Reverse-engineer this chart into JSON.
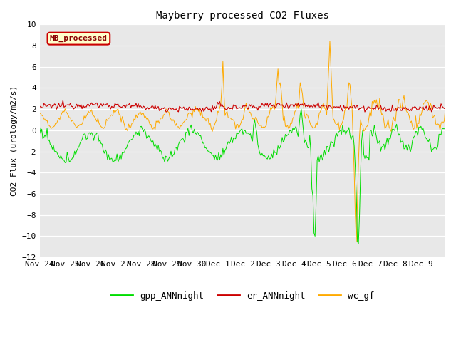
{
  "title": "Mayberry processed CO2 Fluxes",
  "ylabel": "CO2 Flux (urology/m2/s)",
  "ylim": [
    -12,
    10
  ],
  "yticks": [
    -12,
    -10,
    -8,
    -6,
    -4,
    -2,
    0,
    2,
    4,
    6,
    8,
    10
  ],
  "fig_bg_color": "#ffffff",
  "plot_bg_color": "#e8e8e8",
  "line_colors": {
    "gpp": "#00dd00",
    "er": "#cc0000",
    "wc": "#ffaa00"
  },
  "legend_label": "MB_processed",
  "legend_label_color": "#8b0000",
  "legend_box_bg": "#ffffcc",
  "legend_box_edge": "#cc0000",
  "n_points": 384,
  "series_names": [
    "gpp_ANNnight",
    "er_ANNnight",
    "wc_gf"
  ],
  "x_labels": [
    "Nov 24",
    "Nov 25",
    "Nov 26",
    "Nov 27",
    "Nov 28",
    "Nov 29",
    "Nov 30",
    "Dec 1",
    "Dec 2",
    "Dec 3",
    "Dec 4",
    "Dec 5",
    "Dec 6",
    "Dec 7",
    "Dec 8",
    "Dec 9"
  ],
  "pts_per_day": 24
}
